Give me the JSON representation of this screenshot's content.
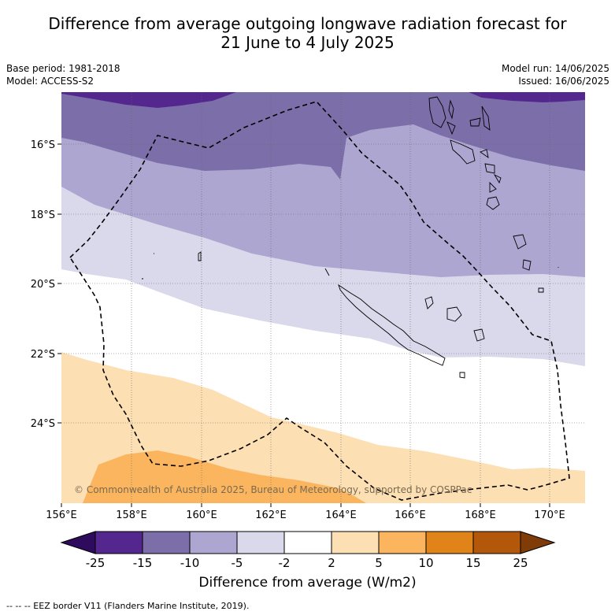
{
  "title_line1": "Difference from average outgoing longwave radiation forecast for",
  "title_line2": "21 June to 4 July 2025",
  "base_period": "Base period: 1981-2018",
  "model": "Model: ACCESS-S2",
  "model_run": "Model run: 14/06/2025",
  "issued": "Issued: 16/06/2025",
  "copyright": "© Commonwealth of Australia 2025, Bureau of Meteorology, supported by COSPPac",
  "lat_ticks": [
    "16°S",
    "18°S",
    "20°S",
    "22°S",
    "24°S"
  ],
  "lon_ticks": [
    "156°E",
    "158°E",
    "160°E",
    "162°E",
    "164°E",
    "166°E",
    "168°E",
    "170°E"
  ],
  "colorbar": {
    "ticks": [
      "-25",
      "-15",
      "-10",
      "-5",
      "-2",
      "2",
      "5",
      "10",
      "15",
      "25"
    ],
    "colors": [
      "#2e0b5c",
      "#54278f",
      "#7c6ea8",
      "#ada6d0",
      "#d9d9eb",
      "#ffffff",
      "#fddfb4",
      "#fbb55f",
      "#e0841a",
      "#b3580b",
      "#7f3b08"
    ],
    "label": "Difference from average (W/m2)"
  },
  "footer": "--  --  -- EEZ border V11 (Flanders Marine Institute, 2019)."
}
